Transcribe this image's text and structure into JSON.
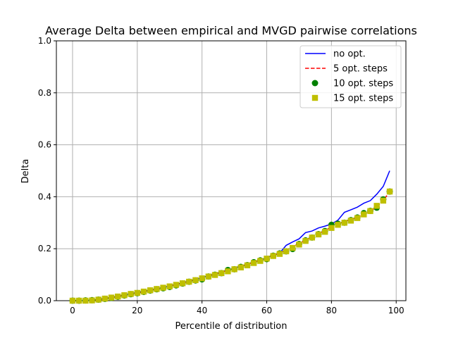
{
  "chart_data": {
    "type": "line",
    "title": "Average Delta between empirical and MVGD pairwise correlations",
    "xlabel": "Percentile of distribution",
    "ylabel": "Delta",
    "xlim": [
      -5,
      103
    ],
    "ylim": [
      0,
      1
    ],
    "xticks": [
      0,
      20,
      40,
      60,
      80,
      100
    ],
    "yticks": [
      0.0,
      0.2,
      0.4,
      0.6,
      0.8,
      1.0
    ],
    "xtick_labels": [
      "0",
      "20",
      "40",
      "60",
      "80",
      "100"
    ],
    "ytick_labels": [
      "0.0",
      "0.2",
      "0.4",
      "0.6",
      "0.8",
      "1.0"
    ],
    "grid": true,
    "legend_position": "top-right",
    "x": [
      0,
      2,
      4,
      6,
      8,
      10,
      12,
      14,
      16,
      18,
      20,
      22,
      24,
      26,
      28,
      30,
      32,
      34,
      36,
      38,
      40,
      42,
      44,
      46,
      48,
      50,
      52,
      54,
      56,
      58,
      60,
      62,
      64,
      66,
      68,
      70,
      72,
      74,
      76,
      78,
      80,
      82,
      84,
      86,
      88,
      90,
      92,
      94,
      96,
      98
    ],
    "series": [
      {
        "name": "no opt.",
        "style": "line",
        "color": "#0000ff",
        "values": [
          0.0,
          0.0,
          0.001,
          0.002,
          0.005,
          0.009,
          0.013,
          0.017,
          0.022,
          0.027,
          0.032,
          0.036,
          0.041,
          0.046,
          0.051,
          0.057,
          0.063,
          0.069,
          0.075,
          0.082,
          0.089,
          0.096,
          0.103,
          0.111,
          0.118,
          0.125,
          0.133,
          0.14,
          0.148,
          0.156,
          0.165,
          0.174,
          0.183,
          0.213,
          0.226,
          0.238,
          0.262,
          0.268,
          0.28,
          0.287,
          0.295,
          0.31,
          0.34,
          0.35,
          0.36,
          0.375,
          0.385,
          0.41,
          0.44,
          0.5
        ]
      },
      {
        "name": "5 opt. steps",
        "style": "dashed",
        "color": "#ff0000",
        "values": [
          0.0,
          0.0,
          0.001,
          0.002,
          0.004,
          0.008,
          0.012,
          0.016,
          0.021,
          0.026,
          0.03,
          0.035,
          0.04,
          0.045,
          0.05,
          0.056,
          0.062,
          0.068,
          0.074,
          0.081,
          0.088,
          0.095,
          0.102,
          0.109,
          0.116,
          0.124,
          0.132,
          0.14,
          0.148,
          0.156,
          0.165,
          0.174,
          0.183,
          0.195,
          0.208,
          0.22,
          0.233,
          0.246,
          0.258,
          0.27,
          0.284,
          0.296,
          0.304,
          0.312,
          0.32,
          0.333,
          0.345,
          0.36,
          0.385,
          0.42
        ]
      },
      {
        "name": "10 opt. steps",
        "style": "circle",
        "color": "#008000",
        "values": [
          0.0,
          0.0,
          0.001,
          0.002,
          0.004,
          0.007,
          0.011,
          0.015,
          0.02,
          0.025,
          0.029,
          0.034,
          0.039,
          0.044,
          0.048,
          0.053,
          0.059,
          0.066,
          0.073,
          0.078,
          0.082,
          0.093,
          0.1,
          0.106,
          0.118,
          0.121,
          0.13,
          0.137,
          0.148,
          0.155,
          0.16,
          0.173,
          0.182,
          0.19,
          0.199,
          0.218,
          0.232,
          0.243,
          0.256,
          0.268,
          0.292,
          0.296,
          0.3,
          0.31,
          0.32,
          0.337,
          0.346,
          0.358,
          0.39,
          0.42
        ]
      },
      {
        "name": "15 opt. steps",
        "style": "square",
        "color": "#bfbf00",
        "values": [
          0.0,
          0.0,
          0.0,
          0.001,
          0.004,
          0.008,
          0.012,
          0.016,
          0.021,
          0.026,
          0.03,
          0.035,
          0.04,
          0.045,
          0.05,
          0.055,
          0.061,
          0.067,
          0.073,
          0.079,
          0.086,
          0.093,
          0.099,
          0.106,
          0.113,
          0.121,
          0.128,
          0.136,
          0.145,
          0.153,
          0.162,
          0.172,
          0.18,
          0.19,
          0.203,
          0.216,
          0.23,
          0.243,
          0.255,
          0.265,
          0.28,
          0.292,
          0.3,
          0.308,
          0.318,
          0.332,
          0.345,
          0.365,
          0.385,
          0.42
        ]
      }
    ]
  }
}
